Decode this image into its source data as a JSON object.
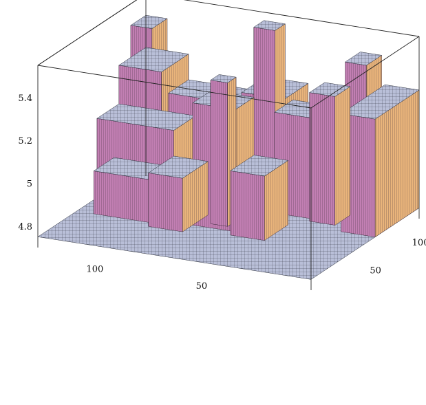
{
  "chart_data": {
    "type": "surface3d",
    "title": "",
    "x_axis": {
      "label": "",
      "range": [
        0,
        128
      ],
      "ticks": [
        50,
        100
      ]
    },
    "y_axis": {
      "label": "",
      "range": [
        0,
        128
      ],
      "ticks": [
        50,
        100
      ]
    },
    "z_axis": {
      "label": "",
      "range": [
        4.7,
        5.55
      ],
      "ticks": [
        4.8,
        5,
        5.2,
        5.4
      ]
    },
    "tick_labels": {
      "x": [
        "50",
        "100"
      ],
      "y": [
        "50",
        "100"
      ],
      "z": [
        "4.8",
        "5",
        "5.2",
        "5.4"
      ]
    },
    "base_level": 4.75,
    "plateaus": [
      {
        "x": [
          0,
          16
        ],
        "y": [
          76,
          128
        ],
        "z": 5.3
      },
      {
        "x": [
          12,
          22
        ],
        "y": [
          96,
          114
        ],
        "z": 5.48
      },
      {
        "x": [
          22,
          34
        ],
        "y": [
          84,
          102
        ],
        "z": 5.35
      },
      {
        "x": [
          34,
          52
        ],
        "y": [
          88,
          110
        ],
        "z": 5.22
      },
      {
        "x": [
          52,
          72
        ],
        "y": [
          100,
          128
        ],
        "z": 5.25
      },
      {
        "x": [
          58,
          68
        ],
        "y": [
          104,
          116
        ],
        "z": 5.55
      },
      {
        "x": [
          72,
          108
        ],
        "y": [
          104,
          128
        ],
        "z": 5.18
      },
      {
        "x": [
          108,
          128
        ],
        "y": [
          96,
          128
        ],
        "z": 5.3
      },
      {
        "x": [
          118,
          128
        ],
        "y": [
          110,
          128
        ],
        "z": 5.45
      },
      {
        "x": [
          92,
          128
        ],
        "y": [
          70,
          96
        ],
        "z": 5.12
      },
      {
        "x": [
          40,
          56
        ],
        "y": [
          46,
          74
        ],
        "z": 5.05
      },
      {
        "x": [
          56,
          76
        ],
        "y": [
          52,
          74
        ],
        "z": 5.32
      },
      {
        "x": [
          62,
          70
        ],
        "y": [
          58,
          68
        ],
        "z": 5.42
      },
      {
        "x": [
          76,
          92
        ],
        "y": [
          40,
          70
        ],
        "z": 5.0
      },
      {
        "x": [
          92,
          120
        ],
        "y": [
          46,
          70
        ],
        "z": 4.95
      }
    ]
  },
  "colors": {
    "top_face": "#b9bfd8",
    "top_face_grid": "#2a2e3a",
    "side_face": "#c27fb3",
    "side_face_lit": "#e9b47b",
    "side_face_grid": "#3a2a3a",
    "box": "#222222"
  }
}
